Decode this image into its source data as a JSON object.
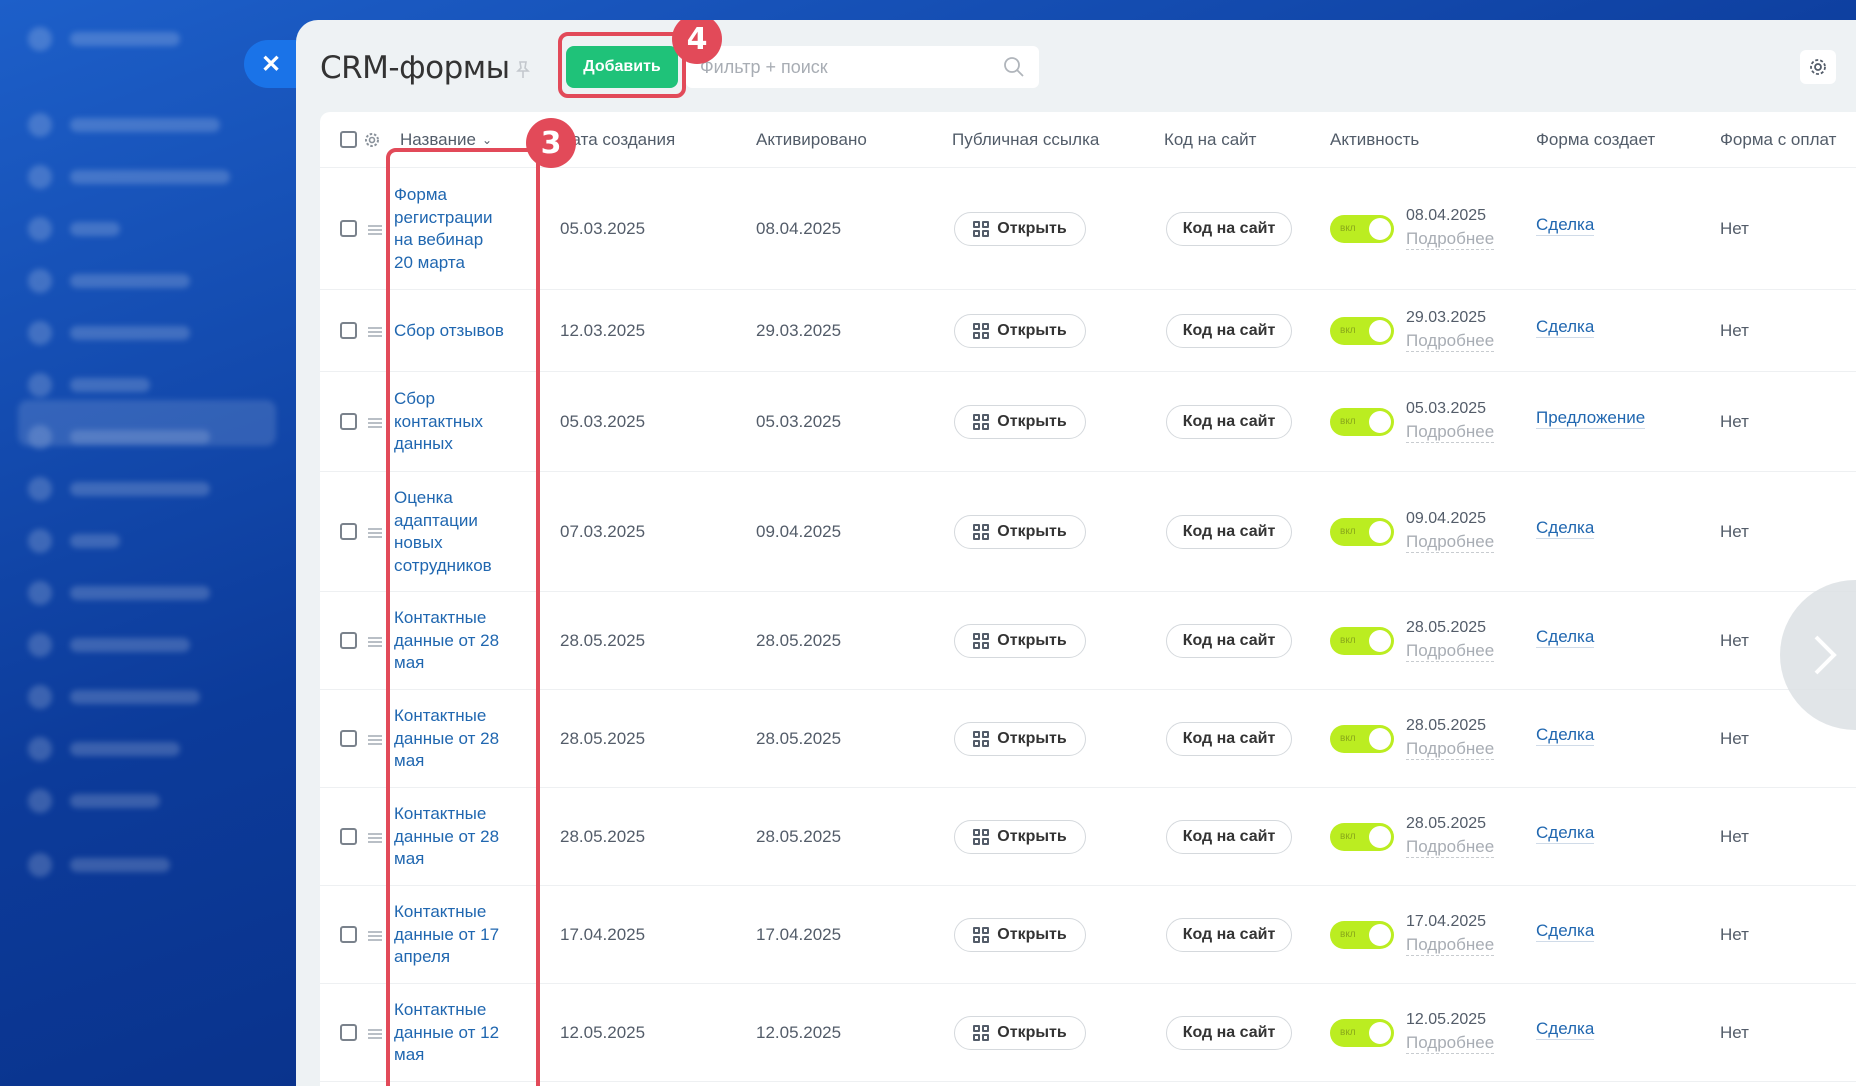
{
  "page": {
    "title": "CRM-формы",
    "add_label": "Добавить",
    "search_placeholder": "Фильтр + поиск",
    "badge_add": "4",
    "badge_name": "3"
  },
  "columns": {
    "name": "Название",
    "created": "Дата создания",
    "activated": "Активировано",
    "public_link": "Публичная ссылка",
    "site_code": "Код на сайт",
    "activity": "Активность",
    "form_creates": "Форма создает",
    "paid_form": "Форма с оплат"
  },
  "labels": {
    "open": "Открыть",
    "site_code": "Код на сайт",
    "toggle_on": "вкл",
    "more": "Подробнее"
  },
  "rows": [
    {
      "name": "Форма регистрации на вебинар 20 марта",
      "created": "05.03.2025",
      "activated": "08.04.2025",
      "activity_date": "08.04.2025",
      "creates": "Сделка",
      "paid": "Нет"
    },
    {
      "name": "Сбор отзывов",
      "created": "12.03.2025",
      "activated": "29.03.2025",
      "activity_date": "29.03.2025",
      "creates": "Сделка",
      "paid": "Нет"
    },
    {
      "name": "Сбор контактных данных",
      "created": "05.03.2025",
      "activated": "05.03.2025",
      "activity_date": "05.03.2025",
      "creates": "Предложение",
      "paid": "Нет"
    },
    {
      "name": "Оценка адаптации новых сотрудников",
      "created": "07.03.2025",
      "activated": "09.04.2025",
      "activity_date": "09.04.2025",
      "creates": "Сделка",
      "paid": "Нет"
    },
    {
      "name": "Контактные данные от 28 мая",
      "created": "28.05.2025",
      "activated": "28.05.2025",
      "activity_date": "28.05.2025",
      "creates": "Сделка",
      "paid": "Нет"
    },
    {
      "name": "Контактные данные от 28 мая",
      "created": "28.05.2025",
      "activated": "28.05.2025",
      "activity_date": "28.05.2025",
      "creates": "Сделка",
      "paid": "Нет"
    },
    {
      "name": "Контактные данные от 28 мая",
      "created": "28.05.2025",
      "activated": "28.05.2025",
      "activity_date": "28.05.2025",
      "creates": "Сделка",
      "paid": "Нет"
    },
    {
      "name": "Контактные данные от 17 апреля",
      "created": "17.04.2025",
      "activated": "17.04.2025",
      "activity_date": "17.04.2025",
      "creates": "Сделка",
      "paid": "Нет"
    },
    {
      "name": "Контактные данные от 12 мая",
      "created": "12.05.2025",
      "activated": "12.05.2025",
      "activity_date": "12.05.2025",
      "creates": "Сделка",
      "paid": "Нет"
    }
  ],
  "colors": {
    "accent": "#1fc279",
    "highlight": "#e24a59",
    "link": "#2067b0",
    "toggle": "#bbed21"
  }
}
